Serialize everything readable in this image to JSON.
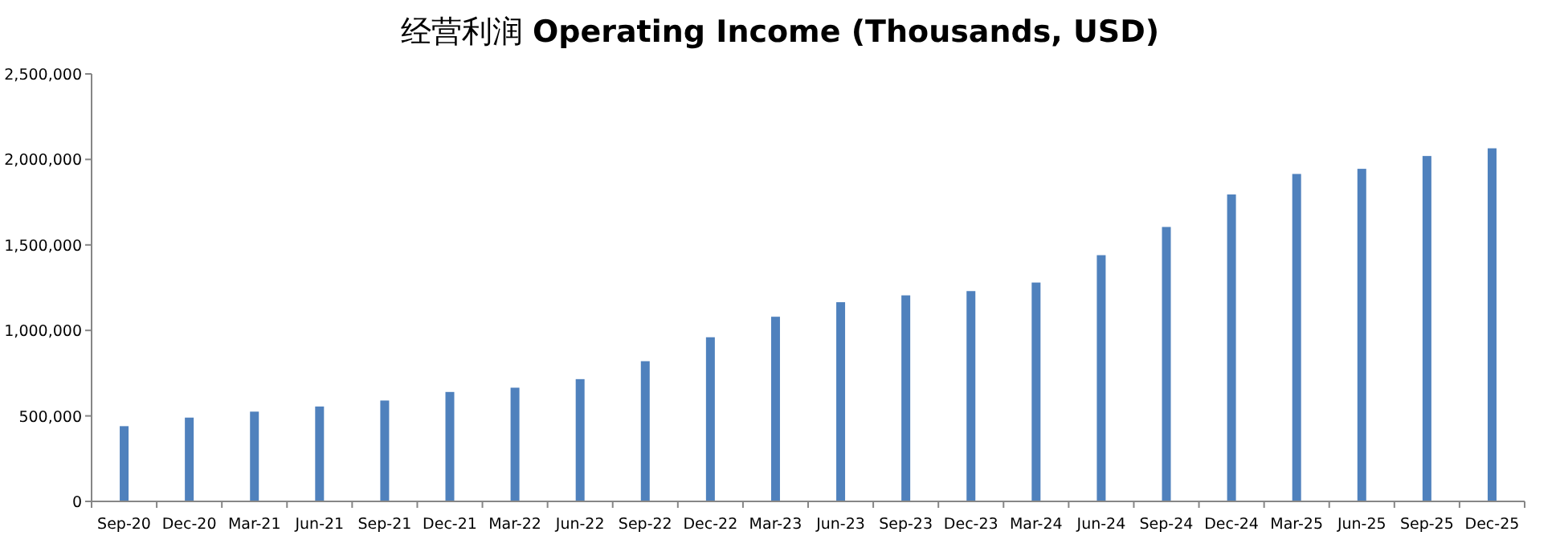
{
  "chart_data": {
    "type": "bar",
    "title": "经营利润 **Operating Income (Thousands, USD)**",
    "categories": [
      "Sep-20",
      "Dec-20",
      "Mar-21",
      "Jun-21",
      "Sep-21",
      "Dec-21",
      "Mar-22",
      "Jun-22",
      "Sep-22",
      "Dec-22",
      "Mar-23",
      "Jun-23",
      "Sep-23",
      "Dec-23",
      "Mar-24",
      "Jun-24",
      "Sep-24",
      "Dec-24",
      "Mar-25",
      "Jun-25",
      "Sep-25",
      "Dec-25"
    ],
    "values": [
      440000,
      490000,
      525000,
      555000,
      590000,
      640000,
      665000,
      715000,
      820000,
      960000,
      1080000,
      1165000,
      1205000,
      1230000,
      1280000,
      1440000,
      1605000,
      1795000,
      1915000,
      1945000,
      2020000,
      2065000
    ],
    "color": "#4f81bd",
    "ylim": [
      0,
      2500000
    ],
    "yticks": [
      {
        "value": 0,
        "label": "0"
      },
      {
        "value": 500000,
        "label": "500,000"
      },
      {
        "value": 1000000,
        "label": "1,000,000"
      },
      {
        "value": 1500000,
        "label": "1,500,000"
      },
      {
        "value": 2000000,
        "label": "2,000,000"
      },
      {
        "value": 2500000,
        "label": "2,500,000"
      }
    ],
    "grid": false,
    "legend": false
  }
}
